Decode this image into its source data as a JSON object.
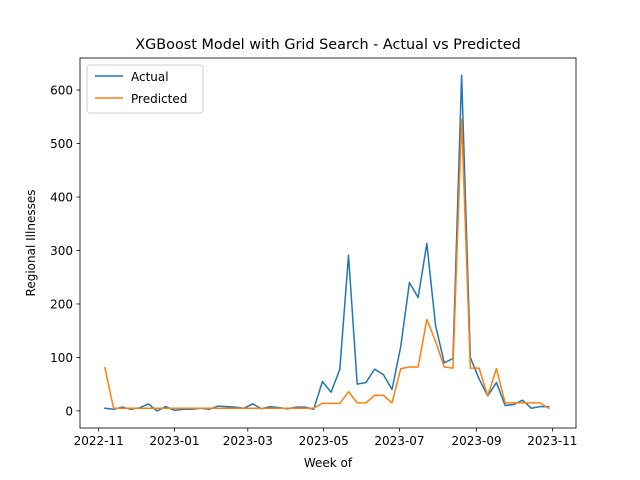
{
  "chart_data": {
    "type": "line",
    "title": "XGBoost Model with Grid Search - Actual vs Predicted",
    "xlabel": "Week of",
    "ylabel": "Regional Illnesses",
    "x_tick_labels": [
      "2022-11",
      "2023-01",
      "2023-03",
      "2023-05",
      "2023-07",
      "2023-09",
      "2023-11"
    ],
    "y_ticks": [
      0,
      100,
      200,
      300,
      400,
      500,
      600
    ],
    "xlim": [
      "2022-10-17",
      "2023-11-20"
    ],
    "ylim": [
      -32,
      660
    ],
    "legend": "upper-left",
    "grid": false,
    "series": [
      {
        "name": "Actual",
        "color": "#1f77b4",
        "points": [
          [
            "2022-11-06",
            5
          ],
          [
            "2022-11-13",
            3
          ],
          [
            "2022-11-20",
            7
          ],
          [
            "2022-11-27",
            3
          ],
          [
            "2022-12-04",
            6
          ],
          [
            "2022-12-11",
            13
          ],
          [
            "2022-12-18",
            0
          ],
          [
            "2022-12-25",
            8
          ],
          [
            "2023-01-01",
            1
          ],
          [
            "2023-01-08",
            3
          ],
          [
            "2023-01-15",
            3
          ],
          [
            "2023-01-22",
            5
          ],
          [
            "2023-01-29",
            3
          ],
          [
            "2023-02-05",
            9
          ],
          [
            "2023-02-12",
            8
          ],
          [
            "2023-02-19",
            7
          ],
          [
            "2023-02-26",
            5
          ],
          [
            "2023-03-05",
            13
          ],
          [
            "2023-03-12",
            4
          ],
          [
            "2023-03-19",
            8
          ],
          [
            "2023-03-26",
            6
          ],
          [
            "2023-04-02",
            4
          ],
          [
            "2023-04-09",
            7
          ],
          [
            "2023-04-16",
            7
          ],
          [
            "2023-04-23",
            3
          ],
          [
            "2023-04-30",
            55
          ],
          [
            "2023-05-07",
            35
          ],
          [
            "2023-05-14",
            78
          ],
          [
            "2023-05-21",
            291
          ],
          [
            "2023-05-28",
            50
          ],
          [
            "2023-06-04",
            53
          ],
          [
            "2023-06-11",
            78
          ],
          [
            "2023-06-18",
            68
          ],
          [
            "2023-06-25",
            40
          ],
          [
            "2023-07-02",
            120
          ],
          [
            "2023-07-09",
            240
          ],
          [
            "2023-07-16",
            212
          ],
          [
            "2023-07-23",
            313
          ],
          [
            "2023-07-30",
            160
          ],
          [
            "2023-08-06",
            90
          ],
          [
            "2023-08-13",
            98
          ],
          [
            "2023-08-20",
            628
          ],
          [
            "2023-08-27",
            100
          ],
          [
            "2023-09-03",
            60
          ],
          [
            "2023-09-10",
            28
          ],
          [
            "2023-09-17",
            53
          ],
          [
            "2023-09-24",
            10
          ],
          [
            "2023-10-01",
            12
          ],
          [
            "2023-10-08",
            20
          ],
          [
            "2023-10-15",
            5
          ],
          [
            "2023-10-22",
            8
          ],
          [
            "2023-10-29",
            8
          ]
        ]
      },
      {
        "name": "Predicted",
        "color": "#ff7f0e",
        "points": [
          [
            "2022-11-06",
            81
          ],
          [
            "2022-11-13",
            5
          ],
          [
            "2022-11-20",
            5
          ],
          [
            "2022-11-27",
            5
          ],
          [
            "2022-12-04",
            5
          ],
          [
            "2022-12-11",
            5
          ],
          [
            "2022-12-18",
            5
          ],
          [
            "2022-12-25",
            5
          ],
          [
            "2023-01-01",
            5
          ],
          [
            "2023-01-08",
            5
          ],
          [
            "2023-01-15",
            5
          ],
          [
            "2023-01-22",
            5
          ],
          [
            "2023-01-29",
            5
          ],
          [
            "2023-02-05",
            5
          ],
          [
            "2023-02-12",
            5
          ],
          [
            "2023-02-19",
            5
          ],
          [
            "2023-02-26",
            5
          ],
          [
            "2023-03-05",
            5
          ],
          [
            "2023-03-12",
            5
          ],
          [
            "2023-03-19",
            5
          ],
          [
            "2023-03-26",
            5
          ],
          [
            "2023-04-02",
            5
          ],
          [
            "2023-04-09",
            5
          ],
          [
            "2023-04-16",
            5
          ],
          [
            "2023-04-23",
            5
          ],
          [
            "2023-04-30",
            14
          ],
          [
            "2023-05-07",
            14
          ],
          [
            "2023-05-14",
            14
          ],
          [
            "2023-05-21",
            36
          ],
          [
            "2023-05-28",
            15
          ],
          [
            "2023-06-04",
            15
          ],
          [
            "2023-06-11",
            29
          ],
          [
            "2023-06-18",
            29
          ],
          [
            "2023-06-25",
            15
          ],
          [
            "2023-07-02",
            79
          ],
          [
            "2023-07-09",
            82
          ],
          [
            "2023-07-16",
            82
          ],
          [
            "2023-07-23",
            171
          ],
          [
            "2023-07-30",
            130
          ],
          [
            "2023-08-06",
            82
          ],
          [
            "2023-08-13",
            80
          ],
          [
            "2023-08-20",
            545
          ],
          [
            "2023-08-27",
            80
          ],
          [
            "2023-09-03",
            80
          ],
          [
            "2023-09-10",
            28
          ],
          [
            "2023-09-17",
            79
          ],
          [
            "2023-09-24",
            15
          ],
          [
            "2023-10-01",
            15
          ],
          [
            "2023-10-08",
            15
          ],
          [
            "2023-10-15",
            15
          ],
          [
            "2023-10-22",
            15
          ],
          [
            "2023-10-29",
            5
          ]
        ]
      }
    ]
  }
}
